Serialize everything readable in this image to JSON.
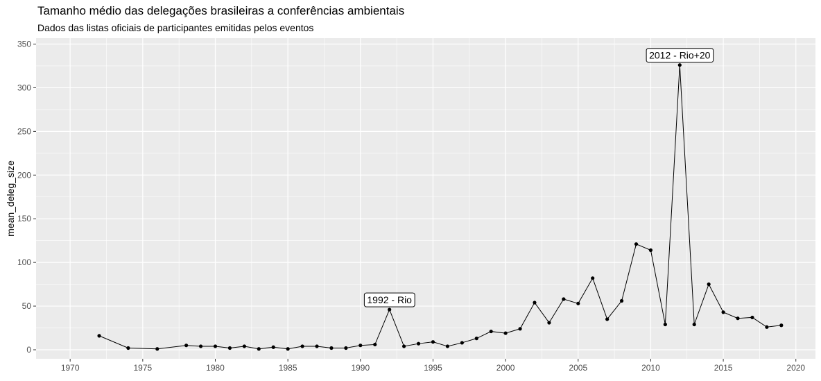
{
  "chart_data": {
    "type": "line",
    "title": "Tamanho médio das delegações brasileiras a conferências ambientais",
    "subtitle": "Dados das listas oficiais de participantes emitidas pelos eventos",
    "xlabel": "",
    "ylabel": "mean_deleg_size",
    "xlim": [
      1970,
      2020
    ],
    "ylim": [
      0,
      350
    ],
    "x_ticks": [
      1970,
      1975,
      1980,
      1985,
      1990,
      1995,
      2000,
      2005,
      2010,
      2015,
      2020
    ],
    "y_ticks": [
      0,
      50,
      100,
      150,
      200,
      250,
      300,
      350
    ],
    "grid": true,
    "legend": "none",
    "colors": {
      "panel": "#ebebeb",
      "grid": "#ffffff",
      "line": "#000000"
    },
    "x": [
      1972,
      1974,
      1976,
      1978,
      1979,
      1980,
      1981,
      1982,
      1983,
      1984,
      1985,
      1986,
      1987,
      1988,
      1989,
      1990,
      1991,
      1992,
      1993,
      1994,
      1995,
      1996,
      1997,
      1998,
      1999,
      2000,
      2001,
      2002,
      2003,
      2004,
      2005,
      2006,
      2007,
      2008,
      2009,
      2010,
      2011,
      2012,
      2013,
      2014,
      2015,
      2016,
      2017,
      2018,
      2019
    ],
    "y": [
      16,
      2,
      1,
      5,
      4,
      4,
      2,
      4,
      1,
      3,
      1,
      4,
      4,
      2,
      2,
      5,
      6,
      46,
      4,
      7,
      9,
      4,
      8,
      13,
      21,
      19,
      24,
      54,
      31,
      58,
      53,
      82,
      35,
      56,
      121,
      114,
      29,
      326,
      29,
      75,
      43,
      36,
      37,
      26,
      28
    ],
    "annotations": [
      {
        "label": "1992 - Rio",
        "x": 1992,
        "y": 46
      },
      {
        "label": "2012 - Rio+20",
        "x": 2012,
        "y": 326
      }
    ]
  }
}
